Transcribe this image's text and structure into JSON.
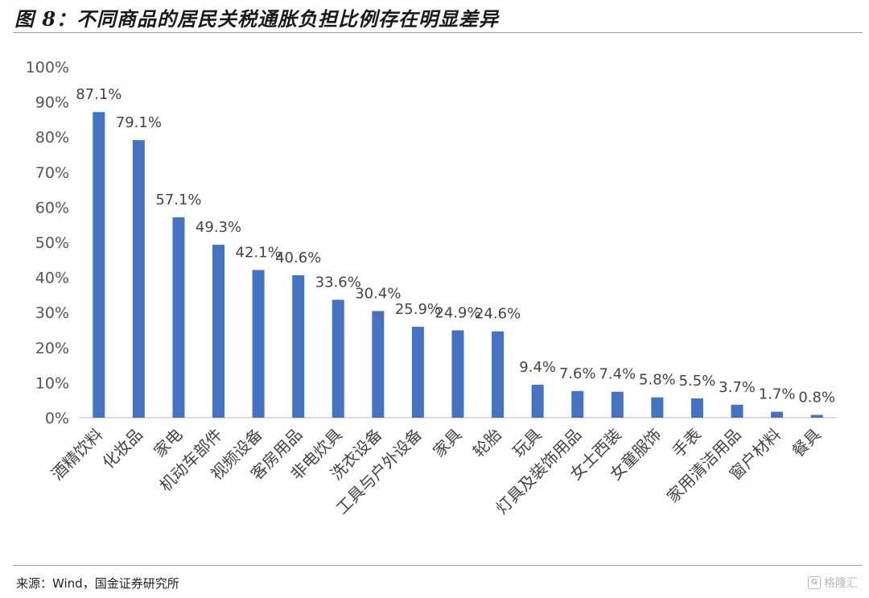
{
  "header": {
    "title": "图 8：不同商品的居民关税通胀负担比例存在明显差异"
  },
  "footer": {
    "source": "来源：Wind，国金证券研究所",
    "watermark": "格隆汇"
  },
  "colors": {
    "bar": "#4472C4",
    "axis": "#d0d0d0",
    "rule": "#8da0b4"
  },
  "chart_data": {
    "type": "bar",
    "title": "图 8：不同商品的居民关税通胀负担比例存在明显差异",
    "xlabel": "",
    "ylabel": "",
    "ylim": [
      0,
      100
    ],
    "y_ticks": [
      "0%",
      "10%",
      "20%",
      "30%",
      "40%",
      "50%",
      "60%",
      "70%",
      "80%",
      "90%",
      "100%"
    ],
    "grid": false,
    "legend": "none",
    "categories": [
      "酒精饮料",
      "化妆品",
      "家电",
      "机动车部件",
      "视频设备",
      "客房用品",
      "非电炊具",
      "洗衣设备",
      "工具与户外设备",
      "家具",
      "轮胎",
      "玩具",
      "灯具及装饰用品",
      "女士西装",
      "女童服饰",
      "手表",
      "家用清洁用品",
      "窗户材料",
      "餐具"
    ],
    "values": [
      87.1,
      79.1,
      57.1,
      49.3,
      42.1,
      40.6,
      33.6,
      30.4,
      25.9,
      24.9,
      24.6,
      9.4,
      7.6,
      7.4,
      5.8,
      5.5,
      3.7,
      1.7,
      0.8
    ],
    "data_labels": [
      "87.1%",
      "79.1%",
      "57.1%",
      "49.3%",
      "42.1%",
      "40.6%",
      "33.6%",
      "30.4%",
      "25.9%",
      "24.9%",
      "24.6%",
      "9.4%",
      "7.6%",
      "7.4%",
      "5.8%",
      "5.5%",
      "3.7%",
      "1.7%",
      "0.8%"
    ]
  }
}
